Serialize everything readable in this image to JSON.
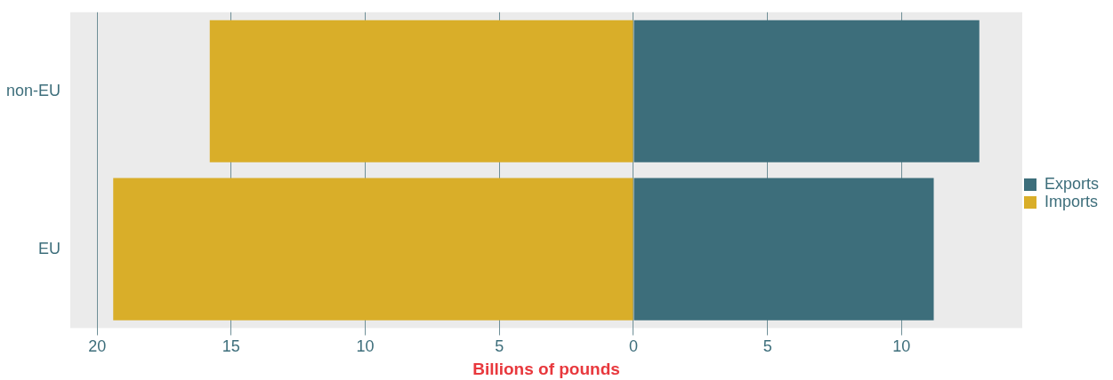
{
  "chart_data": {
    "type": "bar",
    "orientation": "horizontal",
    "stacked": true,
    "categories": [
      "non-EU",
      "EU"
    ],
    "series": [
      {
        "name": "Exports",
        "color": "#3d6e7b",
        "values": [
          12.9,
          11.2
        ]
      },
      {
        "name": "Imports",
        "color": "#d9ae29",
        "values": [
          -15.8,
          -19.4
        ]
      }
    ],
    "xlabel": "Billions of pounds",
    "xlim": [
      -21.0,
      14.5
    ],
    "xticks": [
      {
        "value": -20,
        "label": "20"
      },
      {
        "value": -15,
        "label": "15"
      },
      {
        "value": -10,
        "label": "10"
      },
      {
        "value": -5,
        "label": "5"
      },
      0,
      5,
      10
    ],
    "grid": "x",
    "legend": "right"
  }
}
